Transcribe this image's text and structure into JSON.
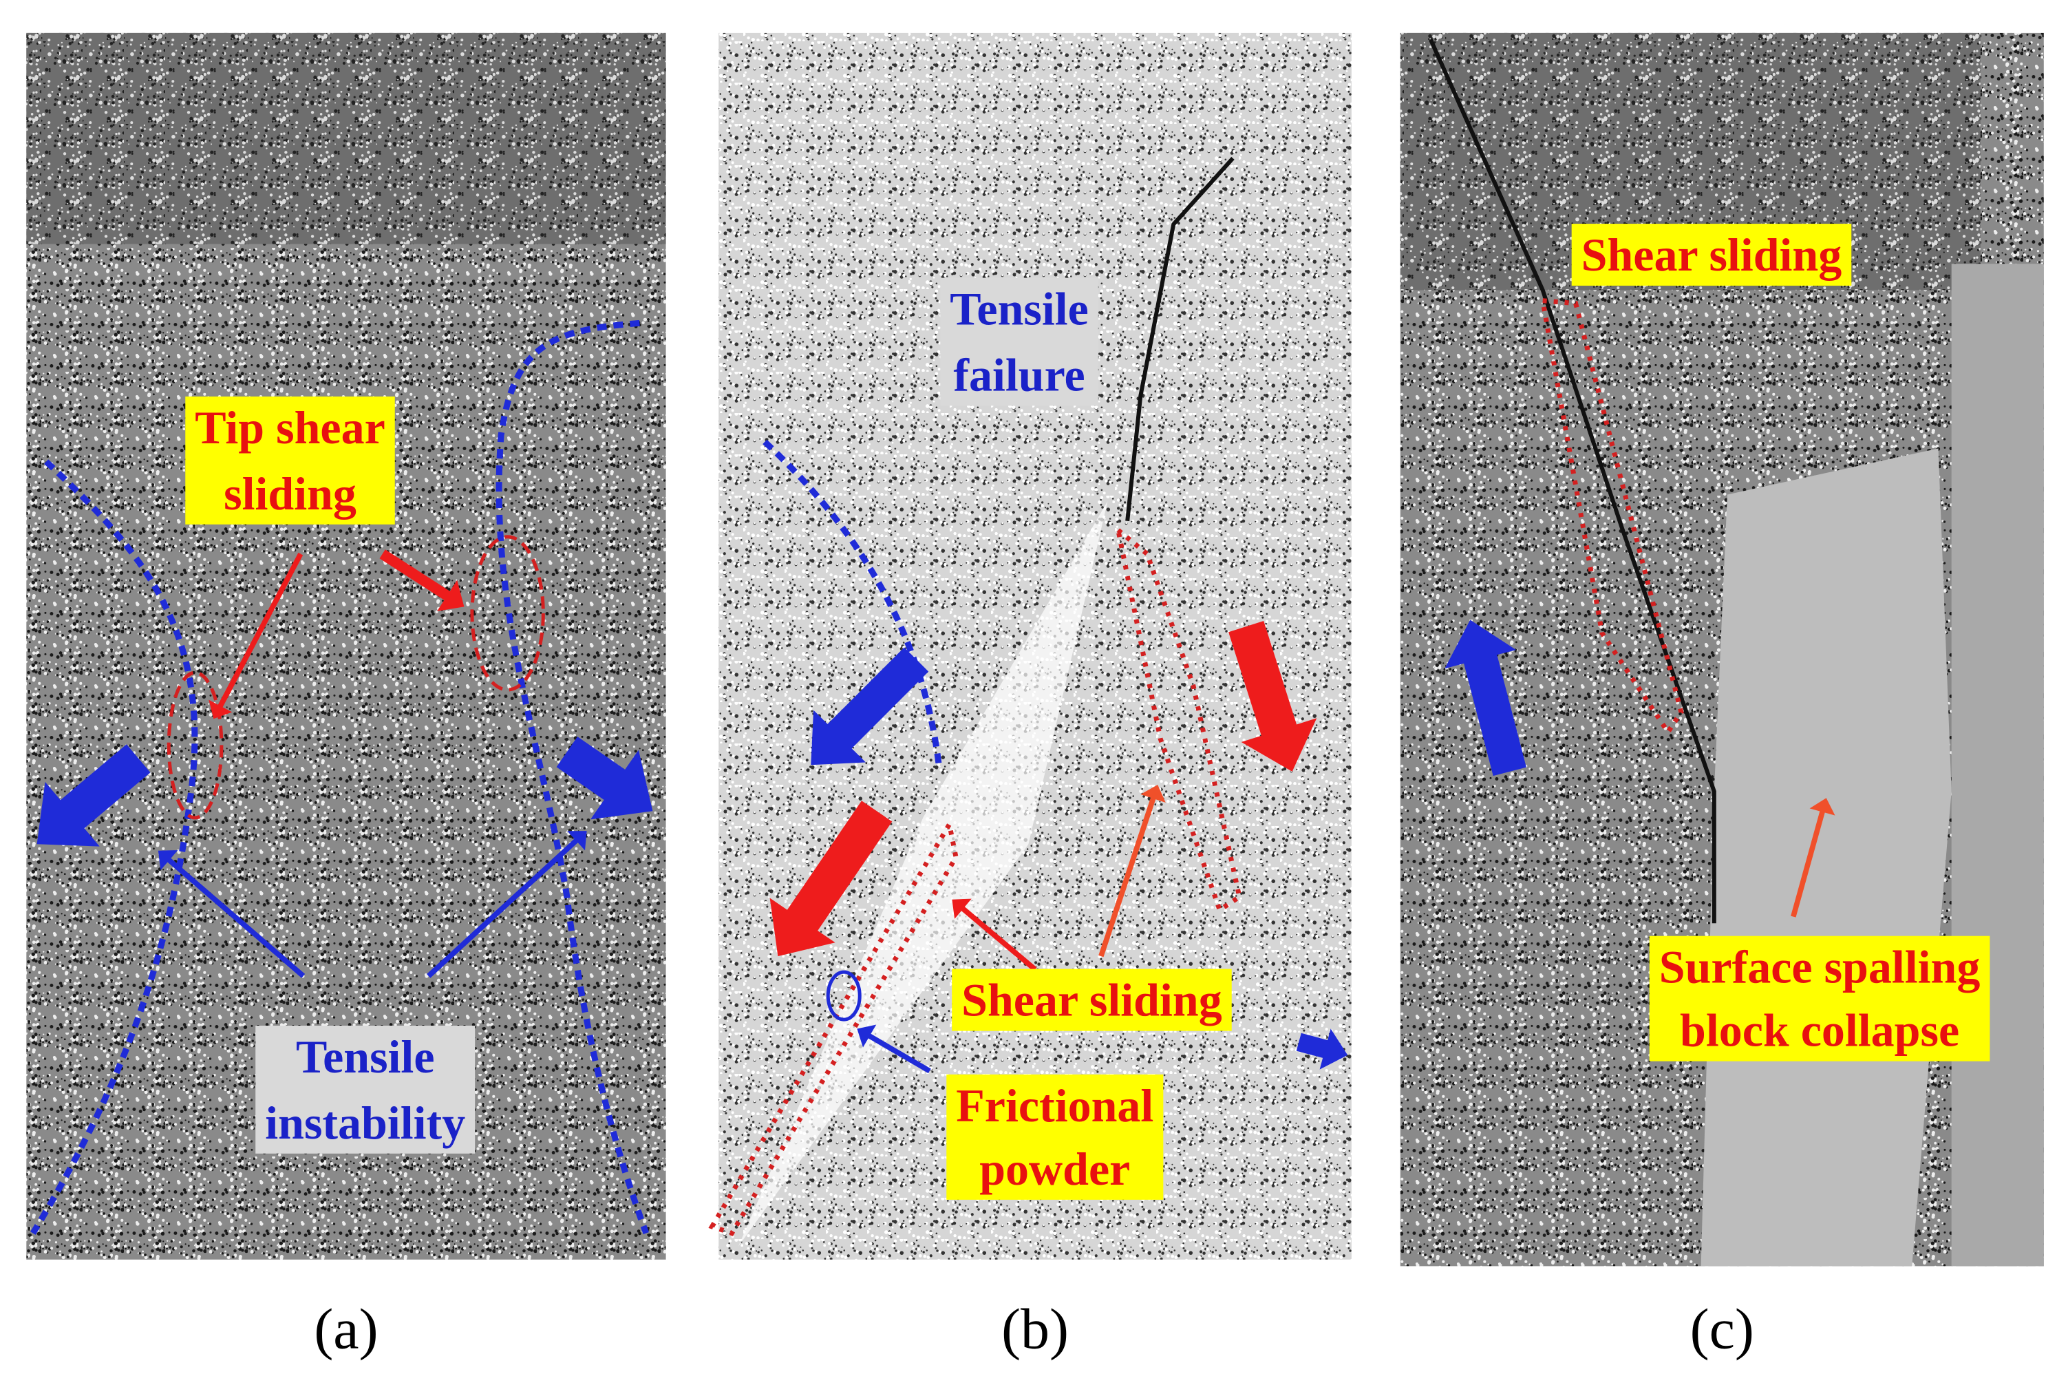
{
  "panels": [
    {
      "caption": "(a)",
      "labels": [
        {
          "lines": [
            "Tip shear",
            "sliding"
          ],
          "style": "yellow"
        },
        {
          "lines": [
            "Tensile",
            "instability"
          ],
          "style": "grey"
        }
      ]
    },
    {
      "caption": "(b)",
      "labels": [
        {
          "lines": [
            "Tensile",
            "failure"
          ],
          "style": "grey"
        },
        {
          "lines": [
            "Shear sliding"
          ],
          "style": "yellow"
        },
        {
          "lines": [
            "Frictional",
            "powder"
          ],
          "style": "yellow"
        }
      ]
    },
    {
      "caption": "(c)",
      "labels": [
        {
          "lines": [
            "Shear sliding"
          ],
          "style": "yellow"
        },
        {
          "lines": [
            "Surface spalling",
            "block collapse"
          ],
          "style": "yellow"
        }
      ]
    }
  ]
}
